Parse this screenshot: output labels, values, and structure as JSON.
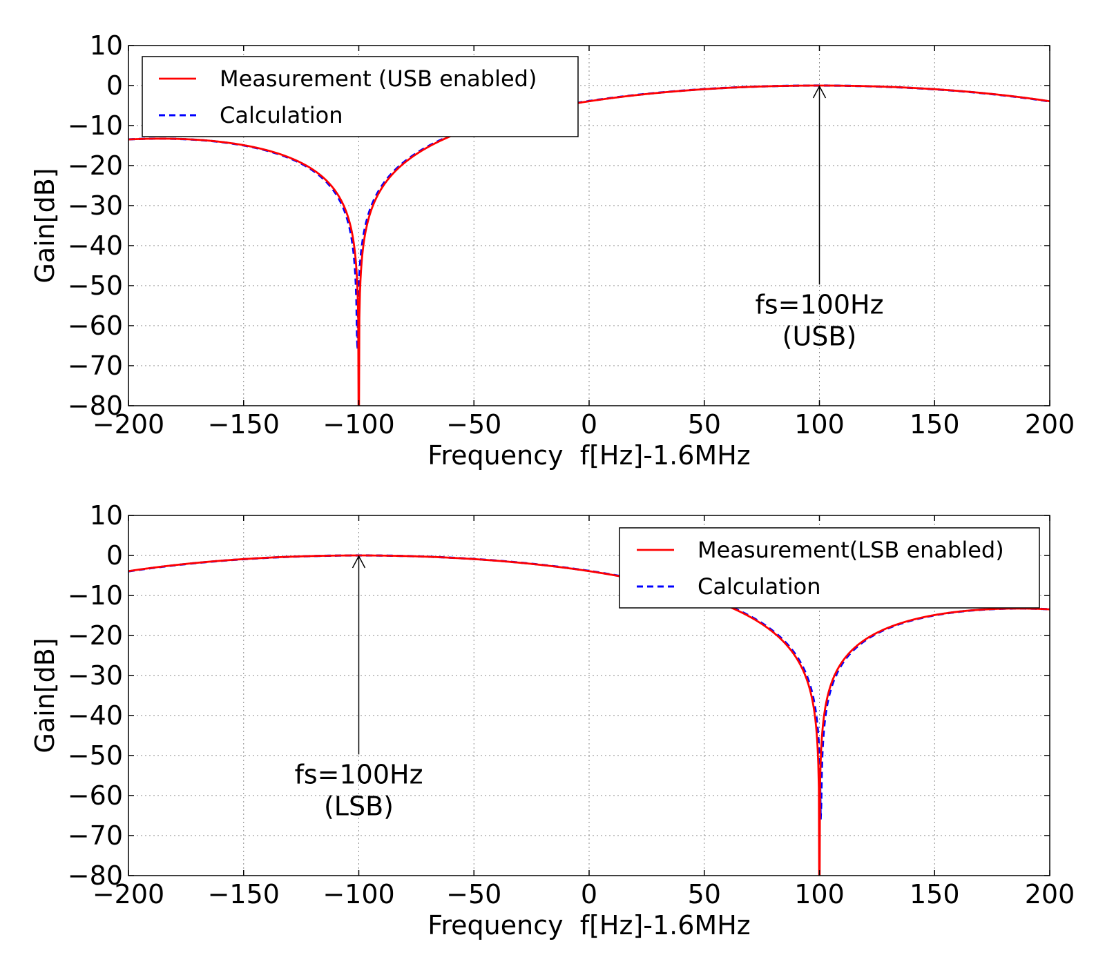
{
  "colors": {
    "measurement": "#ff0000",
    "calculation": "#0000ff",
    "grid": "#8a8a8a",
    "axis": "#000000"
  },
  "chart_data": [
    {
      "type": "line",
      "title": "",
      "xlabel": "Frequency  f[Hz]-1.6MHz",
      "ylabel": "Gain[dB]",
      "xlim": [
        -200,
        200
      ],
      "ylim": [
        -80,
        10
      ],
      "xticks": [
        -200,
        -150,
        -100,
        -50,
        0,
        50,
        100,
        150,
        200
      ],
      "xtick_labels": [
        "−200",
        "−150",
        "−100",
        "−50",
        "0",
        "50",
        "100",
        "150",
        "200"
      ],
      "yticks": [
        10,
        0,
        -10,
        -20,
        -30,
        -40,
        -50,
        -60,
        -70,
        -80
      ],
      "ytick_labels": [
        "10",
        "0",
        "−10",
        "−20",
        "−30",
        "−40",
        "−50",
        "−60",
        "−70",
        "−80"
      ],
      "grid": true,
      "legend_position": "top-left",
      "legend": [
        "Measurement (USB enabled)",
        "Calculation"
      ],
      "model": {
        "fs": 100,
        "sideband": 1
      },
      "series": [
        {
          "name": "Measurement (USB enabled)",
          "style": "solid"
        },
        {
          "name": "Calculation",
          "style": "dashed"
        }
      ],
      "annotation": {
        "text_line1": "fs=100Hz",
        "text_line2": "(USB)",
        "x": 100,
        "y": 0,
        "text_x": 100,
        "text_y": -58
      }
    },
    {
      "type": "line",
      "title": "",
      "xlabel": "Frequency  f[Hz]-1.6MHz",
      "ylabel": "Gain[dB]",
      "xlim": [
        -200,
        200
      ],
      "ylim": [
        -80,
        10
      ],
      "xticks": [
        -200,
        -150,
        -100,
        -50,
        0,
        50,
        100,
        150,
        200
      ],
      "xtick_labels": [
        "−200",
        "−150",
        "−100",
        "−50",
        "0",
        "50",
        "100",
        "150",
        "200"
      ],
      "yticks": [
        10,
        0,
        -10,
        -20,
        -30,
        -40,
        -50,
        -60,
        -70,
        -80
      ],
      "ytick_labels": [
        "10",
        "0",
        "−10",
        "−20",
        "−30",
        "−40",
        "−50",
        "−60",
        "−70",
        "−80"
      ],
      "grid": true,
      "legend_position": "top-right",
      "legend": [
        "Measurement(LSB enabled)",
        "Calculation"
      ],
      "model": {
        "fs": 100,
        "sideband": -1
      },
      "series": [
        {
          "name": "Measurement(LSB enabled)",
          "style": "solid"
        },
        {
          "name": "Calculation",
          "style": "dashed"
        }
      ],
      "annotation": {
        "text_line1": "fs=100Hz",
        "text_line2": "(LSB)",
        "x": -100,
        "y": 0,
        "text_x": -100,
        "text_y": -58
      }
    }
  ]
}
